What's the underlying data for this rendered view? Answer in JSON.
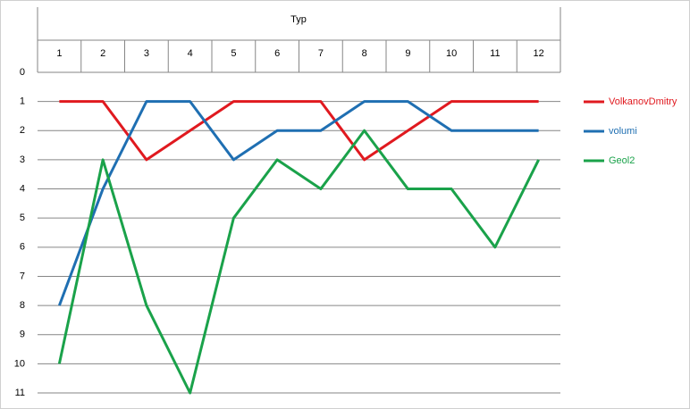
{
  "chart_data": {
    "type": "line",
    "x_label": "Typ",
    "categories": [
      "1",
      "2",
      "3",
      "4",
      "5",
      "6",
      "7",
      "8",
      "9",
      "10",
      "11",
      "12"
    ],
    "series": [
      {
        "name": "VolkanovDmitry",
        "color": "#e0191f",
        "values": [
          1,
          1,
          3,
          2,
          1,
          1,
          1,
          3,
          2,
          1,
          1,
          1
        ]
      },
      {
        "name": "volumi",
        "color": "#1f6fb2",
        "values": [
          8,
          4,
          1,
          1,
          3,
          2,
          2,
          1,
          1,
          2,
          2,
          2
        ]
      },
      {
        "name": "Geol2",
        "color": "#1aa24a",
        "values": [
          10,
          3,
          8,
          11,
          5,
          3,
          4,
          2,
          4,
          4,
          6,
          3
        ]
      }
    ],
    "ylim": [
      0,
      11
    ],
    "yticks": [
      0,
      1,
      2,
      3,
      4,
      5,
      6,
      7,
      8,
      9,
      10,
      11
    ],
    "y_inverted": true,
    "grid": true,
    "legend": "right"
  }
}
